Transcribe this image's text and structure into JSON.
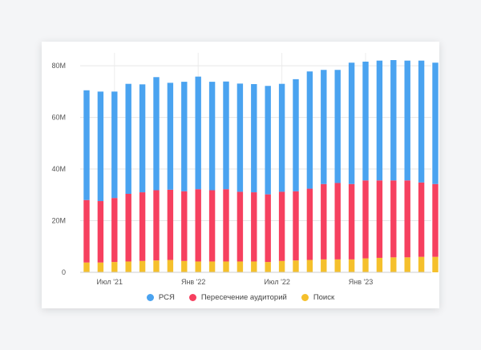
{
  "chart_data": {
    "type": "bar",
    "stacked": true,
    "x_labels": [
      "Июл '21",
      "Янв '22",
      "Июл '22",
      "Янв '23"
    ],
    "y_ticks": [
      "0",
      "20M",
      "40M",
      "60M",
      "80M"
    ],
    "ylim": [
      0,
      85000000
    ],
    "grid": true,
    "legend_position": "bottom",
    "categories": [
      "2021-05",
      "2021-06",
      "2021-07",
      "2021-08",
      "2021-09",
      "2021-10",
      "2021-11",
      "2021-12",
      "2022-01",
      "2022-02",
      "2022-03",
      "2022-04",
      "2022-05",
      "2022-06",
      "2022-07",
      "2022-08",
      "2022-09",
      "2022-10",
      "2022-11",
      "2022-12",
      "2023-01",
      "2023-02",
      "2023-03",
      "2023-04",
      "2023-05",
      "2023-06"
    ],
    "series": [
      {
        "name": "Поиск",
        "color": "#f5c02c",
        "values": [
          3.8,
          3.8,
          4.0,
          4.2,
          4.4,
          4.6,
          4.8,
          4.4,
          4.2,
          4.2,
          4.2,
          4.2,
          4.2,
          4.0,
          4.4,
          4.6,
          4.8,
          5.0,
          5.0,
          5.0,
          5.4,
          5.6,
          5.8,
          5.8,
          6.0,
          6.0
        ]
      },
      {
        "name": "Пересечение аудиторий",
        "color": "#f6405f",
        "values": [
          24.2,
          23.8,
          24.8,
          26.2,
          26.6,
          27.2,
          27.2,
          27.0,
          28.0,
          27.6,
          28.0,
          27.0,
          26.8,
          26.2,
          26.8,
          26.8,
          27.6,
          29.2,
          29.6,
          29.2,
          30.2,
          30.0,
          29.8,
          29.8,
          28.8,
          28.2
        ]
      },
      {
        "name": "РСЯ",
        "color": "#4aa3f0",
        "values": [
          42.5,
          42.4,
          41.2,
          42.6,
          41.8,
          43.8,
          41.4,
          42.4,
          43.6,
          42.0,
          41.7,
          41.9,
          41.9,
          42.0,
          41.8,
          43.4,
          45.4,
          44.2,
          43.8,
          47.0,
          46.0,
          46.4,
          46.6,
          46.4,
          47.2,
          47.0
        ]
      }
    ]
  }
}
